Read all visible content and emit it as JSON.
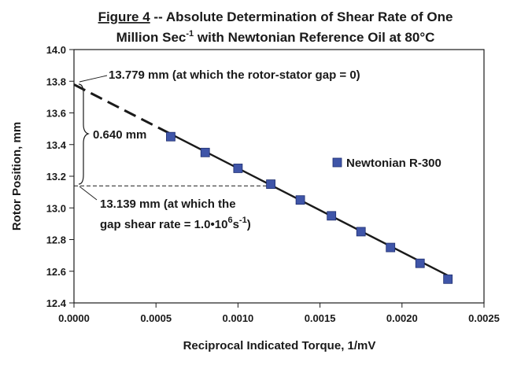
{
  "chart_data": {
    "type": "scatter",
    "title_prefix": "Figure 4",
    "title_line1_rest": " -- Absolute Determination of Shear Rate of One",
    "title_line2_text": "Million Sec",
    "title_line2_sup": "-1",
    "title_line2_rest": " with Newtonian Reference Oil at 80°C",
    "xlabel": "Reciprocal Indicated Torque, 1/mV",
    "ylabel": "Rotor Position, mm",
    "xlim": [
      0,
      0.0025
    ],
    "ylim": [
      12.4,
      14.0
    ],
    "x_ticks": [
      "0.0000",
      "0.0005",
      "0.0010",
      "0.0015",
      "0.0020",
      "0.0025"
    ],
    "y_ticks": [
      "12.4",
      "12.6",
      "12.8",
      "13.0",
      "13.2",
      "13.4",
      "13.6",
      "13.8",
      "14.0"
    ],
    "grid": false,
    "legend_position": "right-middle",
    "series": [
      {
        "name": "Newtonian R-300",
        "color": "#3f55a8",
        "marker": "square",
        "x": [
          0.00059,
          0.0008,
          0.001,
          0.0012,
          0.00138,
          0.00157,
          0.00175,
          0.00193,
          0.00211,
          0.00228
        ],
        "y": [
          13.45,
          13.35,
          13.25,
          13.15,
          13.05,
          12.95,
          12.85,
          12.75,
          12.65,
          12.55
        ]
      }
    ],
    "fit_line": {
      "solid_from_x": 0.00059,
      "to_x": 0.00228,
      "intercept": 13.779,
      "slope": -529
    },
    "ref_y": 13.139,
    "annotations": {
      "top": "13.779 mm (at which the rotor-stator gap = 0)",
      "gap": "0.640 mm",
      "bottom_line1": "13.139 mm (at which the",
      "bottom_line2_a": "gap shear rate = 1.0•10",
      "bottom_line2_sup1": "6",
      "bottom_line2_b": "s",
      "bottom_line2_sup2": "-1",
      "bottom_line2_c": ")"
    }
  }
}
